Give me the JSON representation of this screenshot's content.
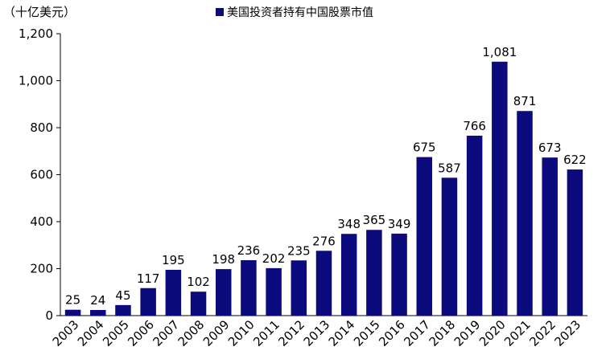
{
  "chart_data": {
    "type": "bar",
    "unit_label": "（十亿美元）",
    "categories": [
      "2003",
      "2004",
      "2005",
      "2006",
      "2007",
      "2008",
      "2009",
      "2010",
      "2011",
      "2012",
      "2013",
      "2014",
      "2015",
      "2016",
      "2017",
      "2018",
      "2019",
      "2020",
      "2021",
      "2022",
      "2023"
    ],
    "series": [
      {
        "name": "美国投资者持有中国股票市值",
        "values": [
          25,
          24,
          45,
          117,
          195,
          102,
          198,
          236,
          202,
          235,
          276,
          348,
          365,
          349,
          675,
          587,
          766,
          1081,
          871,
          673,
          622
        ],
        "value_labels": [
          "25",
          "24",
          "45",
          "117",
          "195",
          "102",
          "198",
          "236",
          "202",
          "235",
          "276",
          "348",
          "365",
          "349",
          "675",
          "587",
          "766",
          "1,081",
          "871",
          "673",
          "622"
        ],
        "color": "#0b0b7d"
      }
    ],
    "yticks": [
      {
        "value": 0,
        "label": "0"
      },
      {
        "value": 200,
        "label": "200"
      },
      {
        "value": 400,
        "label": "400"
      },
      {
        "value": 600,
        "label": "600"
      },
      {
        "value": 800,
        "label": "800"
      },
      {
        "value": 1000,
        "label": "1,000"
      },
      {
        "value": 1200,
        "label": "1,200"
      }
    ],
    "ylim": [
      0,
      1200
    ],
    "grid": false,
    "legend_position": "top-center"
  }
}
